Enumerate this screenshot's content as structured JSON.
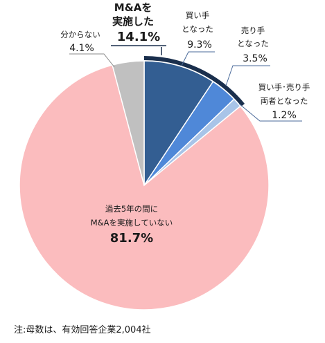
{
  "chart_data": {
    "type": "pie",
    "slices": [
      {
        "label": "買い手となった",
        "value": 9.3,
        "color": "#335e92"
      },
      {
        "label": "売り手となった",
        "value": 3.5,
        "color": "#4f88d8"
      },
      {
        "label": "買い手・売り手両者となった",
        "value": 1.2,
        "color": "#a8c4e8"
      },
      {
        "label": "過去5年の間にM&Aを実施していない",
        "value": 81.7,
        "color": "#fbbcbe"
      },
      {
        "label": "分からない",
        "value": 4.1,
        "color": "#c0c0c0"
      }
    ],
    "group_highlight": {
      "label": "M&Aを実施した",
      "value": 14.1
    }
  },
  "labels": {
    "group_title_1": "M&Aを",
    "group_title_2": "実施した",
    "group_pct": "14.1%",
    "buyer_1": "買い手",
    "buyer_2": "となった",
    "buyer_pct": "9.3%",
    "seller_1": "売り手",
    "seller_2": "となった",
    "seller_pct": "3.5%",
    "both_1": "買い手･売り手",
    "both_2": "両者となった",
    "both_pct": "1.2%",
    "unknown": "分からない",
    "unknown_pct": "4.1%",
    "none_1": "過去5年の間に",
    "none_2": "M&Aを実施していない",
    "none_pct": "81.7%"
  },
  "note": "注:母数は、有効回答企業2,004社"
}
